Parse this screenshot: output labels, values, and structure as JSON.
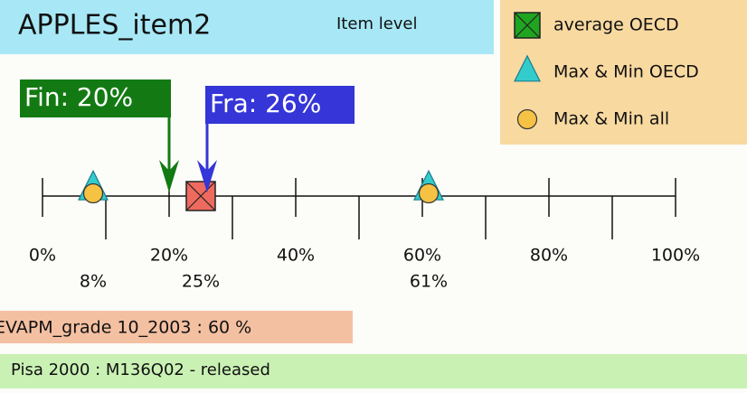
{
  "chart_data": {
    "type": "range",
    "title": "APPLES_item2",
    "subtitle": "Item level",
    "xlim": [
      0,
      100
    ],
    "xticks": [
      {
        "value": 0,
        "label": "0%"
      },
      {
        "value": 20,
        "label": "20%"
      },
      {
        "value": 40,
        "label": "40%"
      },
      {
        "value": 60,
        "label": "60%"
      },
      {
        "value": 80,
        "label": "80%"
      },
      {
        "value": 100,
        "label": "100%"
      }
    ],
    "minor_xticks": [
      10,
      30,
      50,
      70,
      90
    ],
    "series": [
      {
        "name": "average OECD",
        "color": "#1fa51f",
        "mark_color": "#ee6a5e",
        "marker": "square",
        "values": [
          25
        ],
        "value_labels": [
          "25%"
        ]
      },
      {
        "name": "Max & Min OECD",
        "color": "#33cccc",
        "marker": "triangle",
        "values": [
          8,
          61
        ],
        "value_labels": [
          "8%",
          "61%"
        ]
      },
      {
        "name": "Max & Min all",
        "color": "#f6c244",
        "marker": "circle",
        "values": [
          8,
          61
        ]
      }
    ],
    "callouts": [
      {
        "label": "Fin: 20%",
        "value": 20,
        "color": "#137a13"
      },
      {
        "label": "Fra: 26%",
        "value": 26,
        "color": "#3535d8"
      }
    ],
    "notes": [
      "EVAPM_grade 10_2003 : 60 %",
      "Pisa 2000 : M136Q02  - released"
    ]
  }
}
